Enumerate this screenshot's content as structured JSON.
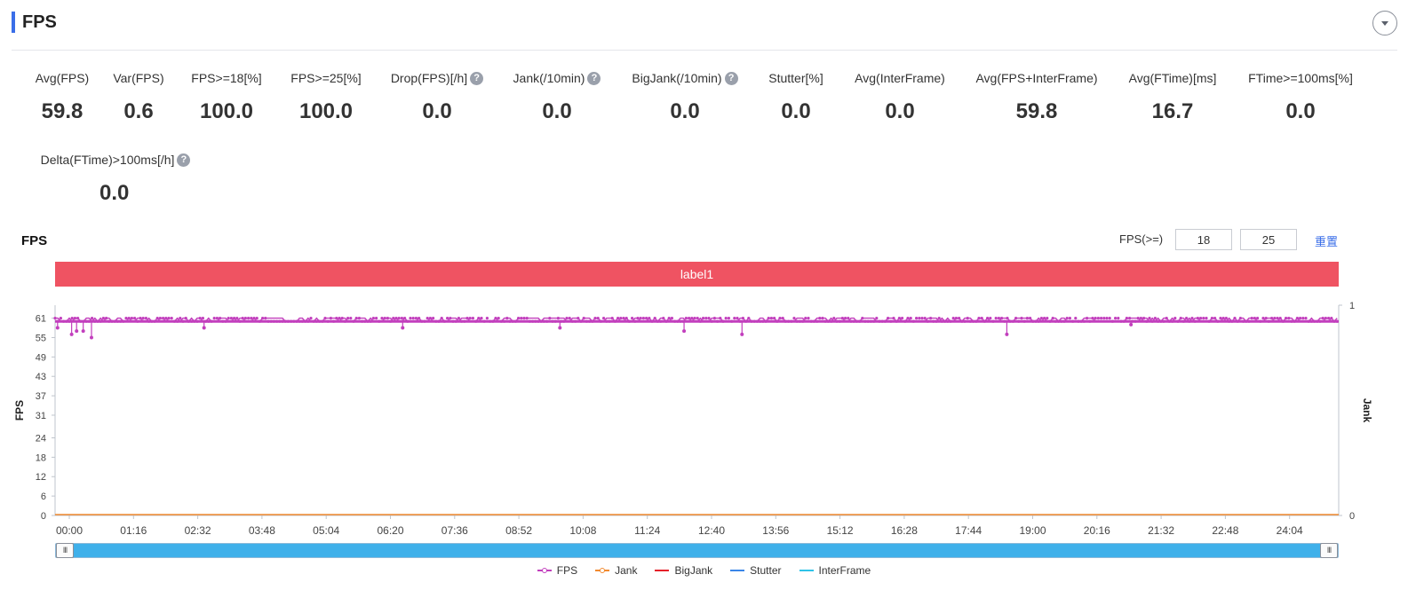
{
  "header": {
    "title": "FPS"
  },
  "metrics": [
    {
      "label": "Avg(FPS)",
      "value": "59.8",
      "help": false
    },
    {
      "label": "Var(FPS)",
      "value": "0.6",
      "help": false
    },
    {
      "label": "FPS>=18[%]",
      "value": "100.0",
      "help": false
    },
    {
      "label": "FPS>=25[%]",
      "value": "100.0",
      "help": false
    },
    {
      "label": "Drop(FPS)[/h]",
      "value": "0.0",
      "help": true
    },
    {
      "label": "Jank(/10min)",
      "value": "0.0",
      "help": true
    },
    {
      "label": "BigJank(/10min)",
      "value": "0.0",
      "help": true
    },
    {
      "label": "Stutter[%]",
      "value": "0.0",
      "help": false
    },
    {
      "label": "Avg(InterFrame)",
      "value": "0.0",
      "help": false
    },
    {
      "label": "Avg(FPS+InterFrame)",
      "value": "59.8",
      "help": false
    },
    {
      "label": "Avg(FTime)[ms]",
      "value": "16.7",
      "help": false
    },
    {
      "label": "FTime>=100ms[%]",
      "value": "0.0",
      "help": false
    },
    {
      "label": "Delta(FTime)>100ms[/h]",
      "value": "0.0",
      "help": true
    }
  ],
  "help_glyph": "?",
  "chart_section": {
    "title": "FPS",
    "threshold_label": "FPS(>=)",
    "threshold_1": "18",
    "threshold_2": "25",
    "reset_label": "重置",
    "label_bar": "label1",
    "slider_grip": "III"
  },
  "colors": {
    "fps": "#c23fbd",
    "jank": "#f28a2e",
    "bigjank": "#e5202a",
    "stutter": "#3a86e8",
    "interframe": "#2fc3e8",
    "label_bar": "#ef5362",
    "slider": "#3fb0ea"
  },
  "chart_data": {
    "type": "line",
    "ylabel": "FPS",
    "y2label": "Jank",
    "yticks": [
      0,
      6,
      12,
      18,
      24,
      31,
      37,
      43,
      49,
      55,
      61
    ],
    "ylim": [
      0,
      65
    ],
    "y2ticks": [
      0,
      1
    ],
    "y2lim": [
      0,
      1
    ],
    "xticks": [
      "00:00",
      "01:16",
      "02:32",
      "03:48",
      "05:04",
      "06:20",
      "07:36",
      "08:52",
      "10:08",
      "11:24",
      "12:40",
      "13:56",
      "15:12",
      "16:28",
      "17:44",
      "19:00",
      "20:16",
      "21:32",
      "22:48",
      "24:04"
    ],
    "x_minutes_range": [
      0,
      1551
    ],
    "fps_baseline": 60,
    "fps_upper": 61,
    "fps_dips": [
      {
        "t": 3,
        "v": 58
      },
      {
        "t": 20,
        "v": 56
      },
      {
        "t": 26,
        "v": 57
      },
      {
        "t": 34,
        "v": 57
      },
      {
        "t": 44,
        "v": 55
      },
      {
        "t": 180,
        "v": 58
      },
      {
        "t": 420,
        "v": 58
      },
      {
        "t": 610,
        "v": 58
      },
      {
        "t": 760,
        "v": 57
      },
      {
        "t": 830,
        "v": 56
      },
      {
        "t": 1150,
        "v": 56
      },
      {
        "t": 1300,
        "v": 59
      }
    ],
    "jank_values": 0,
    "series": [
      {
        "name": "FPS"
      },
      {
        "name": "Jank"
      },
      {
        "name": "BigJank"
      },
      {
        "name": "Stutter"
      },
      {
        "name": "InterFrame"
      }
    ],
    "legend_position": "bottom"
  }
}
